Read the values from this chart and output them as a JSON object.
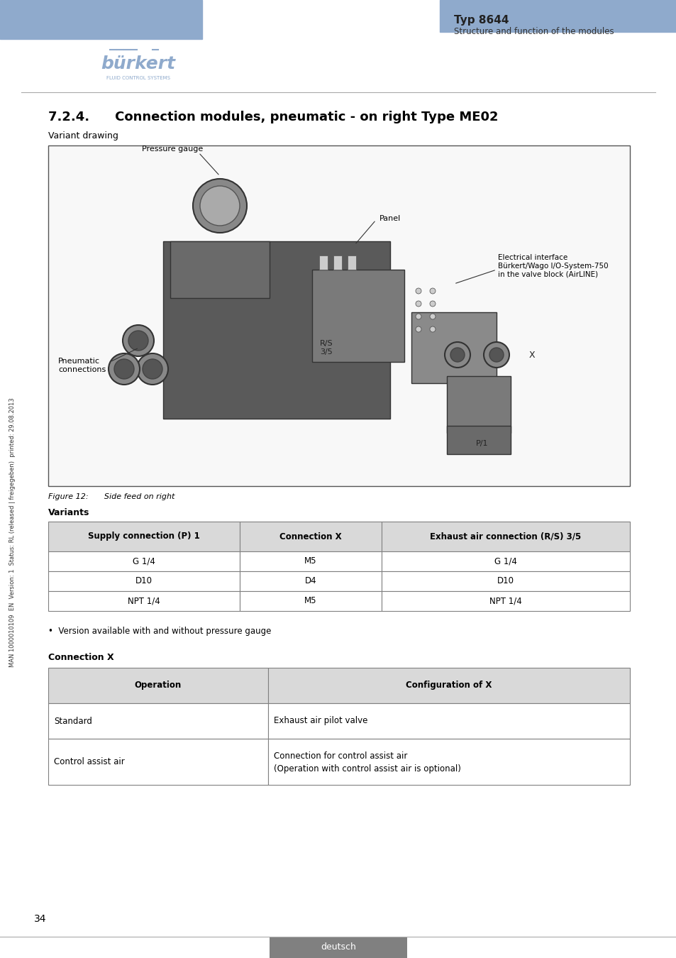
{
  "page_bg": "#ffffff",
  "header_bar_color": "#8faacc",
  "header_right_bar_color": "#8faacc",
  "typ_text": "Typ 8644",
  "subtitle_text": "Structure and function of the modules",
  "section_title": "7.2.4.  Connection modules, pneumatic - on right Type ME02",
  "variant_drawing_label": "Variant drawing",
  "figure_caption": "Figure 12:  Side feed on right",
  "variants_label": "Variants",
  "table1_headers": [
    "Supply connection (P) 1",
    "Connection X",
    "Exhaust air connection (R/S) 3/5"
  ],
  "table1_rows": [
    [
      "G 1/4",
      "M5",
      "G 1/4"
    ],
    [
      "D10",
      "D4",
      "D10"
    ],
    [
      "NPT 1/4",
      "M5",
      "NPT 1/4"
    ]
  ],
  "bullet_text": "•  Version available with and without pressure gauge",
  "connection_x_label": "Connection X",
  "table2_headers": [
    "Operation",
    "Configuration of X"
  ],
  "table2_rows": [
    [
      "Standard",
      "Exhaust air pilot valve"
    ],
    [
      "Control assist air",
      "Connection for control assist air\n(Operation with control assist air is optional)"
    ]
  ],
  "sidebar_text": "MAN 1000010109  EN  Version: 1  Status: RL (released | freigegeben)  printed: 29.08.2013",
  "page_number": "34",
  "footer_tab_text": "deutsch",
  "footer_tab_color": "#808080",
  "table_header_bg": "#d9d9d9",
  "table_border_color": "#808080",
  "body_font_color": "#000000",
  "diagram_labels": {
    "pressure_gauge": "Pressure gauge",
    "panel": "Panel",
    "electrical_interface": "Electrical interface\nBürkert/Wago I/O-System-750\nin the valve block (AirLINE)",
    "rs35": "R/S\n3/5",
    "x_label": "X",
    "pneumatic": "Pneumatic\nconnections",
    "p1": "P/1"
  }
}
